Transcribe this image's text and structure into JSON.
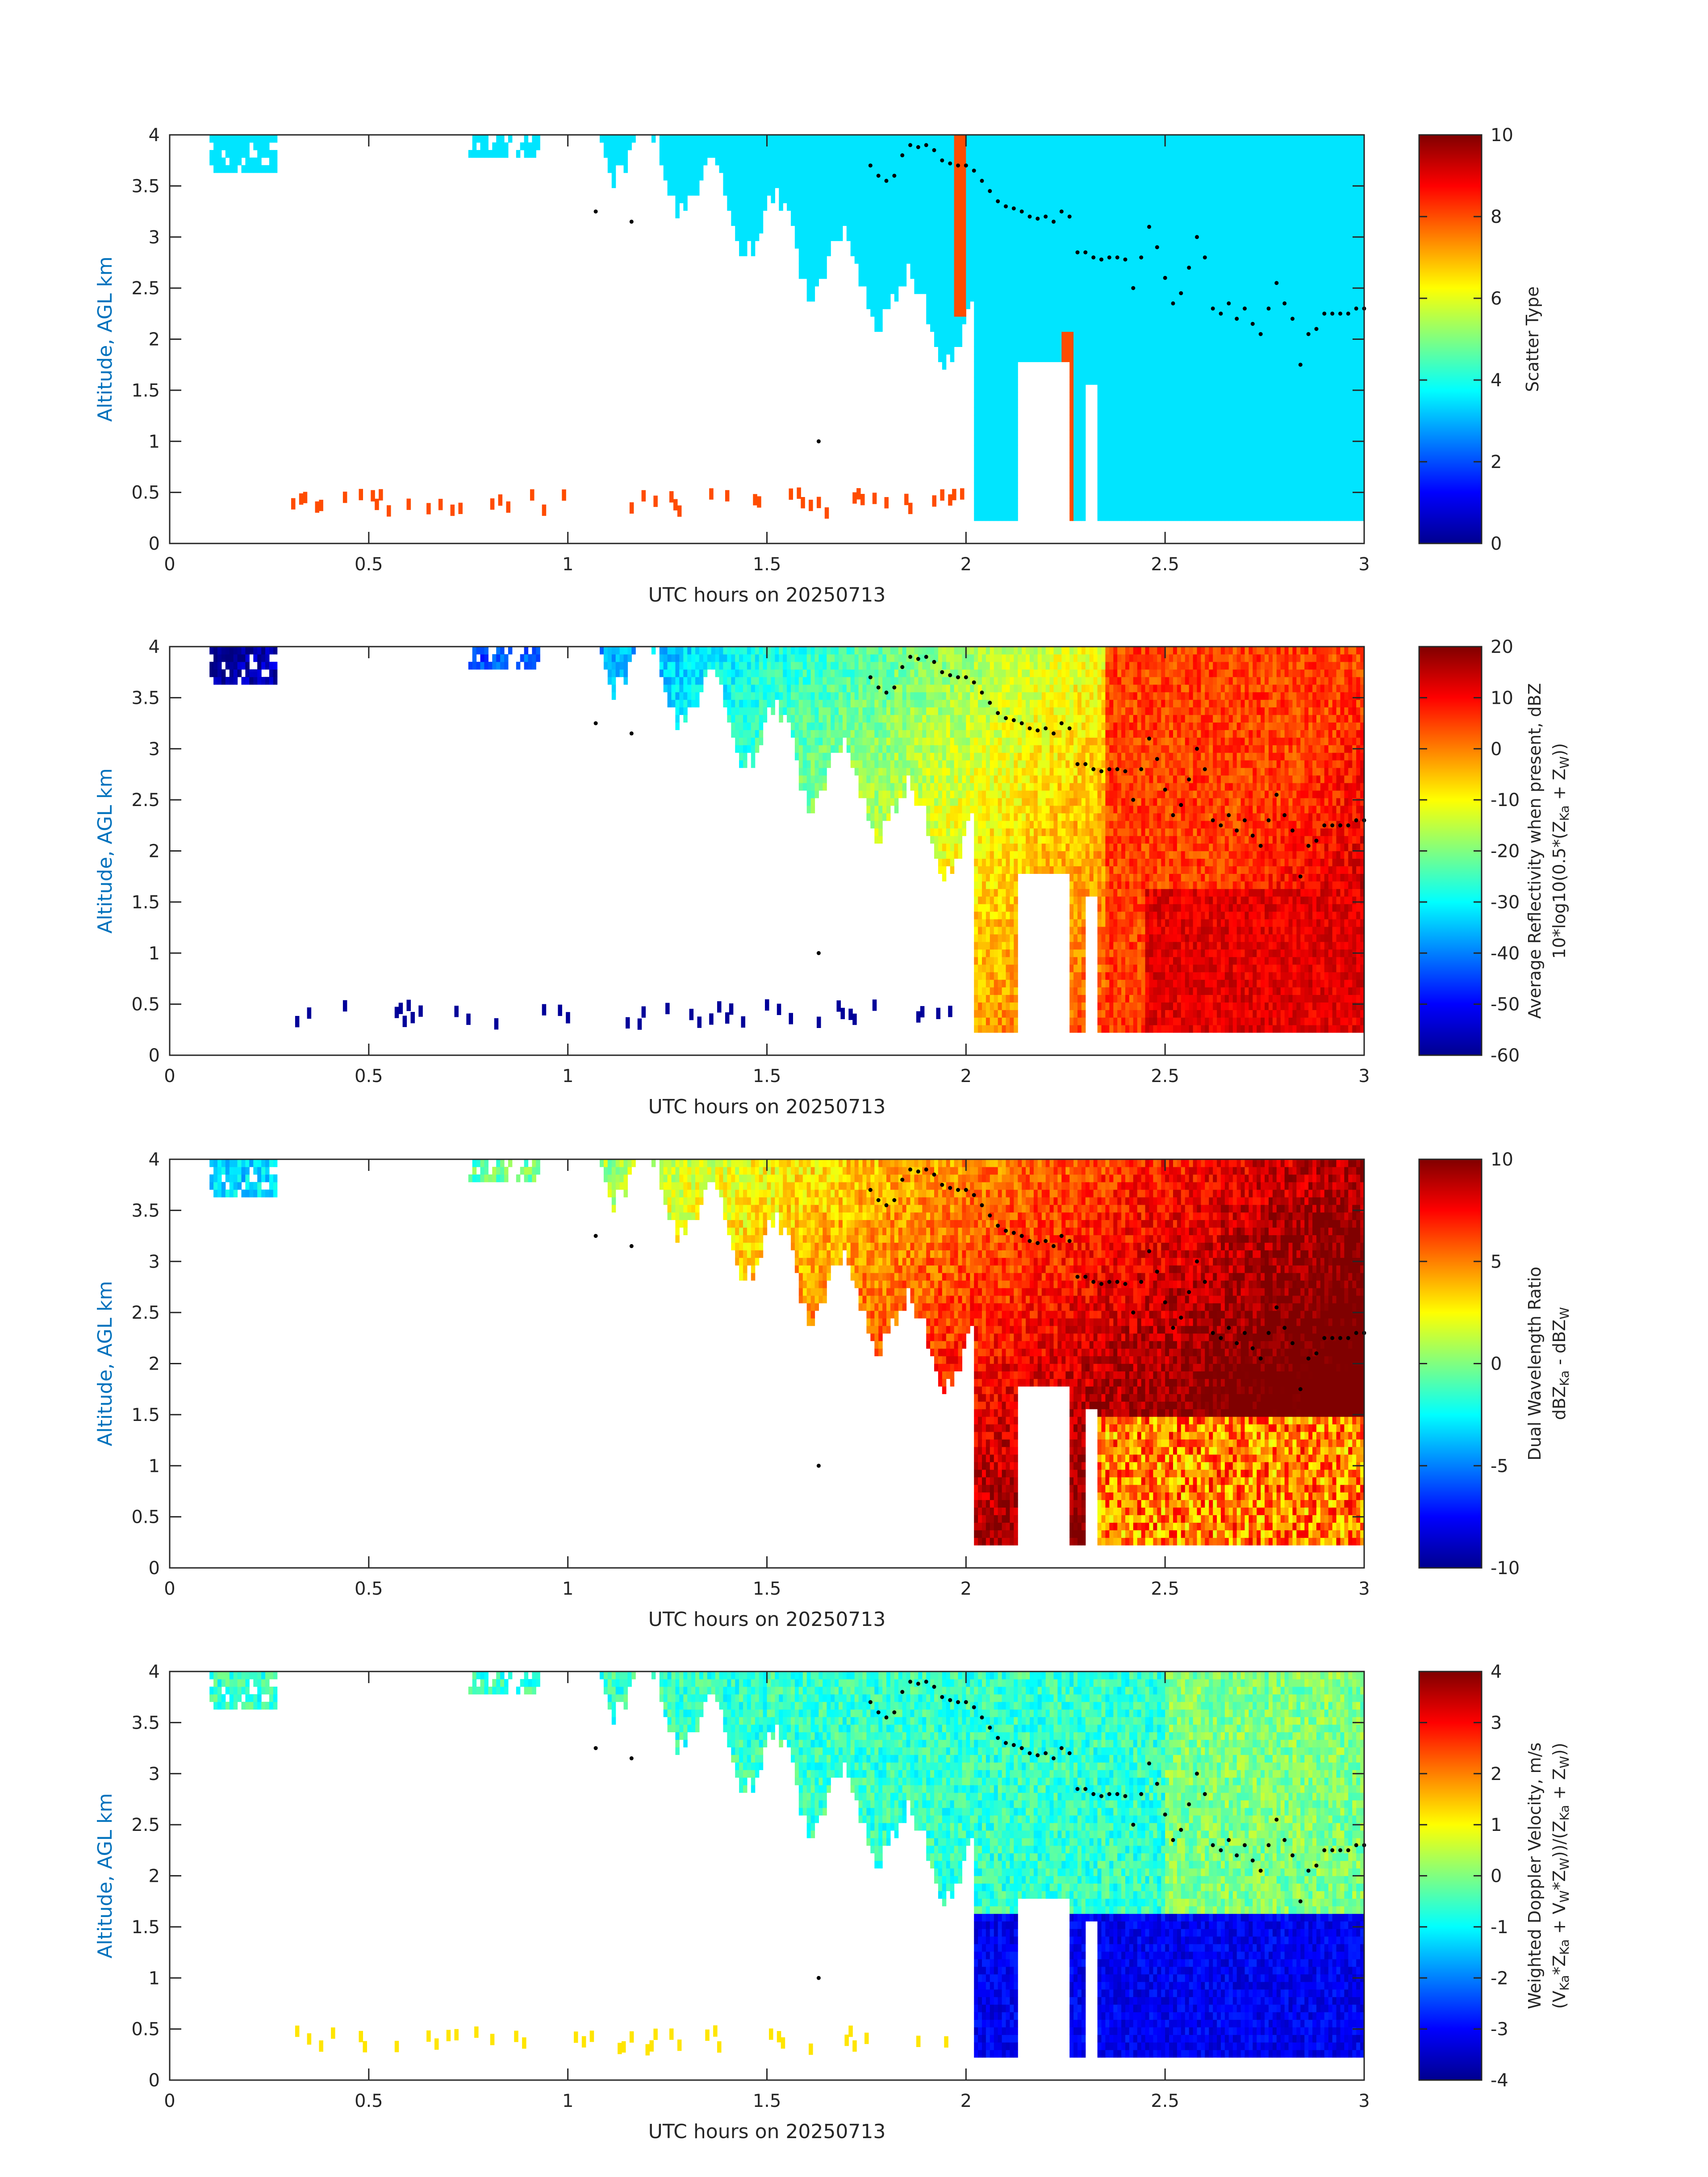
{
  "figure": {
    "background": "#ffffff",
    "ylabel_color": "#0072bd",
    "axis_color": "#262626",
    "marker_color": "#000000",
    "palette": "jet"
  },
  "chart_data": [
    {
      "type": "heatmap",
      "id": "scatter-type",
      "xlabel": "UTC hours on 20250713",
      "ylabel": "Altitude, AGL km",
      "xlim": [
        0,
        3
      ],
      "ylim": [
        0,
        4
      ],
      "xticks": [
        "0",
        "0.5",
        "1",
        "1.5",
        "2",
        "2.5",
        "3"
      ],
      "yticks": [
        "0",
        "0.5",
        "1",
        "1.5",
        "2",
        "2.5",
        "3",
        "3.5",
        "4"
      ],
      "colorbar": {
        "label_lines": [
          "Scatter Type"
        ],
        "min": 0,
        "max": 10,
        "ticks": [
          "0",
          "2",
          "4",
          "6",
          "8",
          "10"
        ]
      },
      "field": "scatter_type",
      "values_present": [
        3.5,
        8
      ]
    },
    {
      "type": "heatmap",
      "id": "average-reflectivity",
      "xlabel": "UTC hours on 20250713",
      "ylabel": "Altitude, AGL km",
      "xlim": [
        0,
        3
      ],
      "ylim": [
        0,
        4
      ],
      "xticks": [
        "0",
        "0.5",
        "1",
        "1.5",
        "2",
        "2.5",
        "3"
      ],
      "yticks": [
        "0",
        "0.5",
        "1",
        "1.5",
        "2",
        "2.5",
        "3",
        "3.5",
        "4"
      ],
      "colorbar": {
        "label_lines": [
          "Average Reflectivity when present, dBZ",
          "10*log10(0.5*(Z",
          "Ka",
          " + Z",
          "W",
          "))"
        ],
        "min": -60,
        "max": 20,
        "ticks": [
          "-60",
          "-50",
          "-40",
          "-30",
          "-20",
          "-10",
          "0",
          "10",
          "20"
        ]
      },
      "field": "reflectivity_dbz"
    },
    {
      "type": "heatmap",
      "id": "dual-wavelength-ratio",
      "xlabel": "UTC hours on 20250713",
      "ylabel": "Altitude, AGL km",
      "xlim": [
        0,
        3
      ],
      "ylim": [
        0,
        4
      ],
      "xticks": [
        "0",
        "0.5",
        "1",
        "1.5",
        "2",
        "2.5",
        "3"
      ],
      "yticks": [
        "0",
        "0.5",
        "1",
        "1.5",
        "2",
        "2.5",
        "3",
        "3.5",
        "4"
      ],
      "colorbar": {
        "label_lines": [
          "Dual Wavelength Ratio",
          "dBZ",
          "Ka",
          " - dBZ",
          "W"
        ],
        "min": -10,
        "max": 10,
        "ticks": [
          "-10",
          "-5",
          "0",
          "5",
          "10"
        ]
      },
      "field": "dwr_db"
    },
    {
      "type": "heatmap",
      "id": "weighted-doppler-velocity",
      "xlabel": "UTC hours on 20250713",
      "ylabel": "Altitude, AGL km",
      "xlim": [
        0,
        3
      ],
      "ylim": [
        0,
        4
      ],
      "xticks": [
        "0",
        "0.5",
        "1",
        "1.5",
        "2",
        "2.5",
        "3"
      ],
      "yticks": [
        "0",
        "0.5",
        "1",
        "1.5",
        "2",
        "2.5",
        "3",
        "3.5",
        "4"
      ],
      "colorbar": {
        "label_lines": [
          "Weighted Doppler Velocity, m/s",
          "(V",
          "Ka",
          "*Z",
          "Ka",
          " + V",
          "W",
          "*Z",
          "W",
          "))/(Z",
          "Ka",
          " + Z",
          "W",
          "))"
        ],
        "min": -4,
        "max": 4,
        "ticks": [
          "-4",
          "-3",
          "-2",
          "-1",
          "0",
          "1",
          "2",
          "3",
          "4"
        ]
      },
      "field": "doppler_velocity_ms"
    }
  ],
  "cloud_top_markers": {
    "x": [
      1.07,
      1.16,
      1.63,
      1.76,
      1.78,
      1.8,
      1.82,
      1.84,
      1.86,
      1.88,
      1.9,
      1.92,
      1.94,
      1.96,
      1.98,
      2.0,
      2.02,
      2.04,
      2.06,
      2.08,
      2.1,
      2.12,
      2.14,
      2.16,
      2.18,
      2.2,
      2.22,
      2.24,
      2.26,
      2.28,
      2.3,
      2.32,
      2.34,
      2.36,
      2.38,
      2.4,
      2.42,
      2.44,
      2.46,
      2.48,
      2.5,
      2.52,
      2.54,
      2.56,
      2.58,
      2.6,
      2.62,
      2.64,
      2.66,
      2.68,
      2.7,
      2.72,
      2.74,
      2.76,
      2.78,
      2.8,
      2.82,
      2.84,
      2.86,
      2.88,
      2.9,
      2.92,
      2.94,
      2.96,
      2.98,
      3.0
    ],
    "y": [
      3.25,
      3.15,
      1.0,
      3.7,
      3.6,
      3.55,
      3.6,
      3.8,
      3.9,
      3.88,
      3.9,
      3.85,
      3.75,
      3.72,
      3.7,
      3.7,
      3.65,
      3.55,
      3.45,
      3.35,
      3.3,
      3.28,
      3.25,
      3.2,
      3.18,
      3.2,
      3.15,
      3.25,
      3.2,
      2.85,
      2.85,
      2.8,
      2.78,
      2.8,
      2.8,
      2.78,
      2.5,
      2.8,
      3.1,
      2.9,
      2.6,
      2.35,
      2.45,
      2.7,
      3.0,
      2.8,
      2.3,
      2.25,
      2.35,
      2.2,
      2.3,
      2.15,
      2.05,
      2.3,
      2.55,
      2.35,
      2.2,
      1.75,
      2.05,
      2.1,
      2.25,
      2.25,
      2.25,
      2.25,
      2.3,
      2.3
    ]
  }
}
